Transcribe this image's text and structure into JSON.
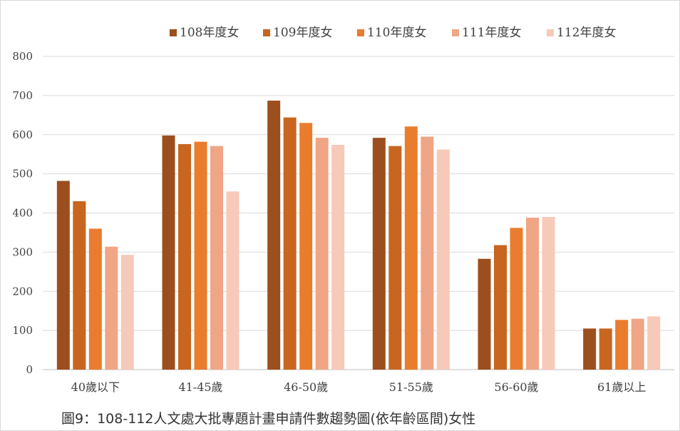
{
  "caption": "圖9：108-112人文處大批專題計畫申請件數趨勢圖(依年齡區間)女性",
  "chart_data": {
    "type": "bar",
    "title": "",
    "xlabel": "",
    "ylabel": "",
    "ylim": [
      0,
      800
    ],
    "yticks": [
      0,
      100,
      200,
      300,
      400,
      500,
      600,
      700,
      800
    ],
    "grid": true,
    "legend_position": "top",
    "categories": [
      "40歲以下",
      "41-45歲",
      "46-50歲",
      "51-55歲",
      "56-60歲",
      "61歲以上"
    ],
    "series": [
      {
        "name": "108年度女",
        "color": "#9c4f1e",
        "values": [
          482,
          598,
          687,
          592,
          283,
          105
        ]
      },
      {
        "name": "109年度女",
        "color": "#c8651f",
        "values": [
          430,
          576,
          644,
          571,
          318,
          105
        ]
      },
      {
        "name": "110年度女",
        "color": "#ea7c2e",
        "values": [
          360,
          582,
          630,
          621,
          362,
          127
        ]
      },
      {
        "name": "111年度女",
        "color": "#f0a585",
        "values": [
          314,
          571,
          592,
          595,
          388,
          130
        ]
      },
      {
        "name": "112年度女",
        "color": "#f6c9b8",
        "values": [
          293,
          455,
          574,
          562,
          390,
          136
        ]
      }
    ]
  }
}
